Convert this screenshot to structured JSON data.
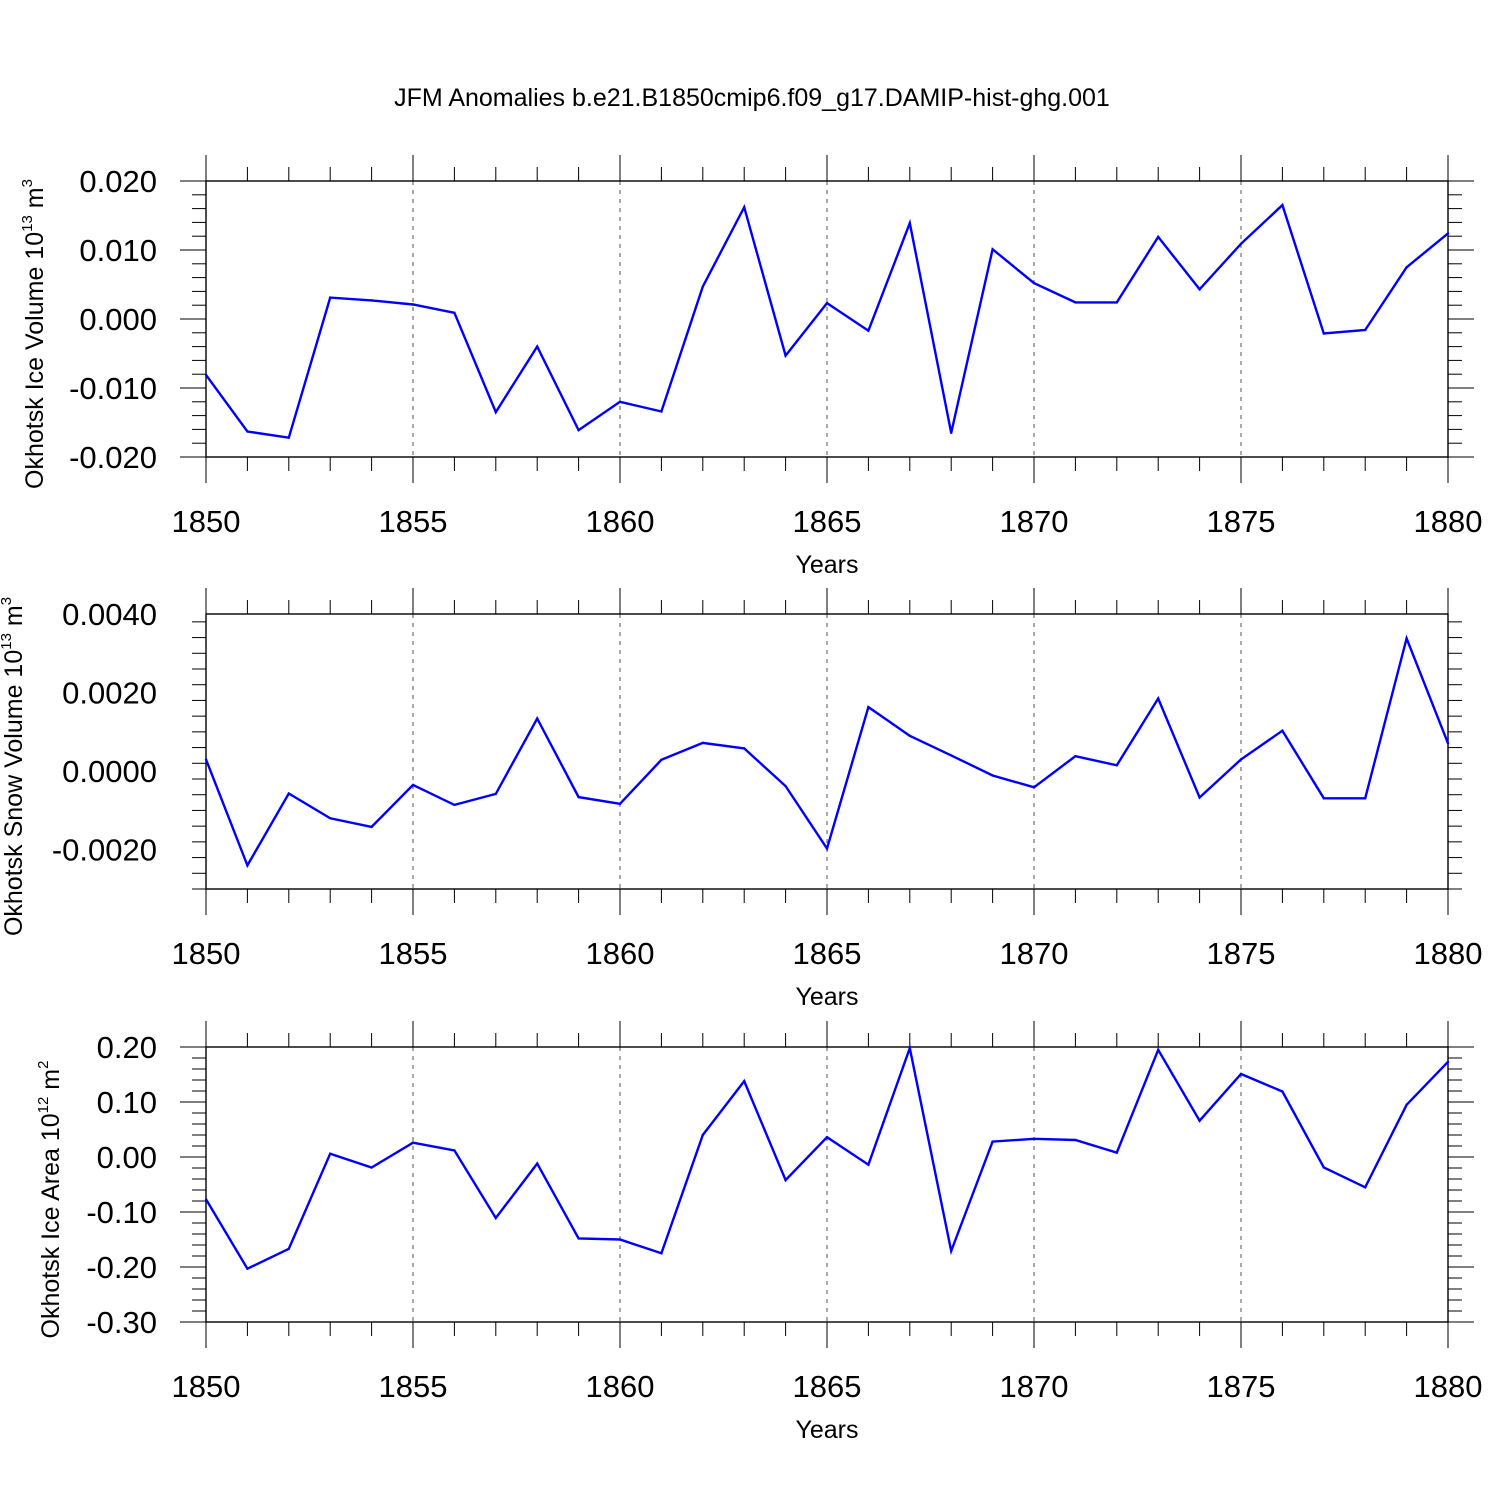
{
  "title": "JFM Anomalies b.e21.B1850cmip6.f09_g17.DAMIP-hist-ghg.001",
  "colors": {
    "line": "#0000ff",
    "axis": "#000000",
    "grid": "#555555"
  },
  "chart_data": [
    {
      "type": "line",
      "ylabel_parts": {
        "pre": "Okhotsk Ice Volume 10",
        "exp": "13",
        "mid": " m",
        "unit_exp": "3"
      },
      "xlabel": "Years",
      "xlim": [
        1850,
        1880
      ],
      "xticks": [
        "1850",
        "1855",
        "1860",
        "1865",
        "1870",
        "1875",
        "1880"
      ],
      "ylim": [
        -0.02,
        0.02
      ],
      "yticks": [
        "-0.020",
        "-0.010",
        "0.000",
        "0.010",
        "0.020"
      ],
      "grid": "vertical dashed at major x ticks",
      "series": [
        {
          "x": [
            1850,
            1851,
            1852,
            1853,
            1854,
            1855,
            1856,
            1857,
            1858,
            1859,
            1860,
            1861,
            1862,
            1863,
            1864,
            1865,
            1866,
            1867,
            1868,
            1869,
            1870,
            1871,
            1872,
            1873,
            1874,
            1875,
            1876,
            1877,
            1878,
            1879,
            1880
          ],
          "values": [
            -0.0081,
            -0.0163,
            -0.0172,
            0.0031,
            0.0027,
            0.0021,
            0.0009,
            -0.0135,
            -0.004,
            -0.0161,
            -0.012,
            -0.0134,
            0.0047,
            0.0162,
            -0.0053,
            0.0023,
            -0.0017,
            0.0139,
            -0.0165,
            0.0101,
            0.0052,
            0.0024,
            0.0024,
            0.0119,
            0.0043,
            0.0109,
            0.0165,
            -0.0021,
            -0.0016,
            0.0075,
            0.0124
          ]
        }
      ]
    },
    {
      "type": "line",
      "ylabel_parts": {
        "pre": "Okhotsk Snow Volume 10",
        "exp": "13",
        "mid": " m",
        "unit_exp": "3"
      },
      "xlabel": "Years",
      "xlim": [
        1850,
        1880
      ],
      "xticks": [
        "1850",
        "1855",
        "1860",
        "1865",
        "1870",
        "1875",
        "1880"
      ],
      "ylim": [
        -0.003,
        0.004
      ],
      "yticks": [
        "-0.0020",
        "0.0000",
        "0.0020",
        "0.0040"
      ],
      "yticks_at": [
        -0.002,
        0.0,
        0.002,
        0.004
      ],
      "grid": "vertical dashed at major x ticks",
      "series": [
        {
          "x": [
            1850,
            1851,
            1852,
            1853,
            1854,
            1855,
            1856,
            1857,
            1858,
            1859,
            1860,
            1861,
            1862,
            1863,
            1864,
            1865,
            1866,
            1867,
            1868,
            1869,
            1870,
            1871,
            1872,
            1873,
            1874,
            1875,
            1876,
            1877,
            1878,
            1879,
            1880
          ],
          "values": [
            0.0003,
            -0.0024,
            -0.00057,
            -0.0012,
            -0.00142,
            -0.00035,
            -0.00086,
            -0.00058,
            0.00134,
            -0.00066,
            -0.00083,
            0.00029,
            0.00072,
            0.00058,
            -0.00038,
            -0.00197,
            0.00163,
            0.0009,
            0.0004,
            -0.00011,
            -0.00041,
            0.00038,
            0.00015,
            0.00185,
            -0.00067,
            0.0003,
            0.00103,
            -0.00069,
            -0.00069,
            0.00338,
            0.00071
          ]
        }
      ]
    },
    {
      "type": "line",
      "ylabel_parts": {
        "pre": "Okhotsk Ice Area 10",
        "exp": "12",
        "mid": " m",
        "unit_exp": "2"
      },
      "xlabel": "Years",
      "xlim": [
        1850,
        1880
      ],
      "xticks": [
        "1850",
        "1855",
        "1860",
        "1865",
        "1870",
        "1875",
        "1880"
      ],
      "ylim": [
        -0.3,
        0.2
      ],
      "yticks": [
        "-0.30",
        "-0.20",
        "-0.10",
        "0.00",
        "0.10",
        "0.20"
      ],
      "grid": "vertical dashed at major x ticks",
      "series": [
        {
          "x": [
            1850,
            1851,
            1852,
            1853,
            1854,
            1855,
            1856,
            1857,
            1858,
            1859,
            1860,
            1861,
            1862,
            1863,
            1864,
            1865,
            1866,
            1867,
            1868,
            1869,
            1870,
            1871,
            1872,
            1873,
            1874,
            1875,
            1876,
            1877,
            1878,
            1879,
            1880
          ],
          "values": [
            -0.077,
            -0.203,
            -0.167,
            0.006,
            -0.019,
            0.026,
            0.012,
            -0.111,
            -0.012,
            -0.148,
            -0.15,
            -0.175,
            0.04,
            0.138,
            -0.042,
            0.036,
            -0.014,
            0.198,
            -0.171,
            0.028,
            0.033,
            0.031,
            0.008,
            0.195,
            0.066,
            0.151,
            0.119,
            -0.019,
            -0.055,
            0.095,
            0.173
          ]
        }
      ]
    }
  ]
}
